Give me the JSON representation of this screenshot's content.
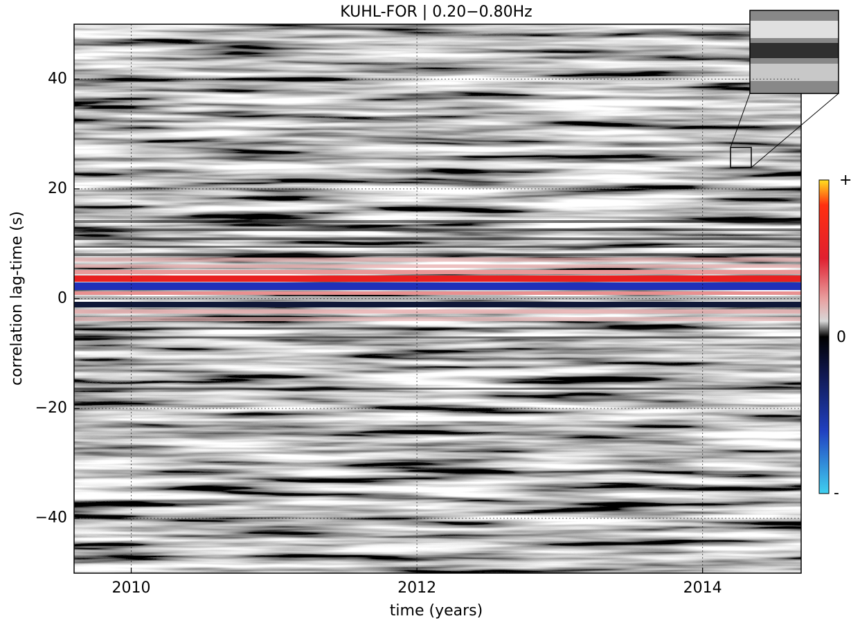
{
  "chart_data": {
    "type": "heatmap",
    "title": "KUHL-FOR | 0.20−0.80Hz",
    "xlabel": "time (years)",
    "ylabel": "correlation lag-time (s)",
    "xlim": [
      2009.6,
      2014.69
    ],
    "xticks": [
      2010,
      2012,
      2014
    ],
    "ylim": [
      -50,
      50
    ],
    "yticks": [
      {
        "value": -40,
        "label": "−40"
      },
      {
        "value": -20,
        "label": "−20"
      },
      0,
      20,
      40
    ],
    "grid": true,
    "colorbar": {
      "labels": [
        "+",
        "0",
        "-"
      ]
    }
  }
}
